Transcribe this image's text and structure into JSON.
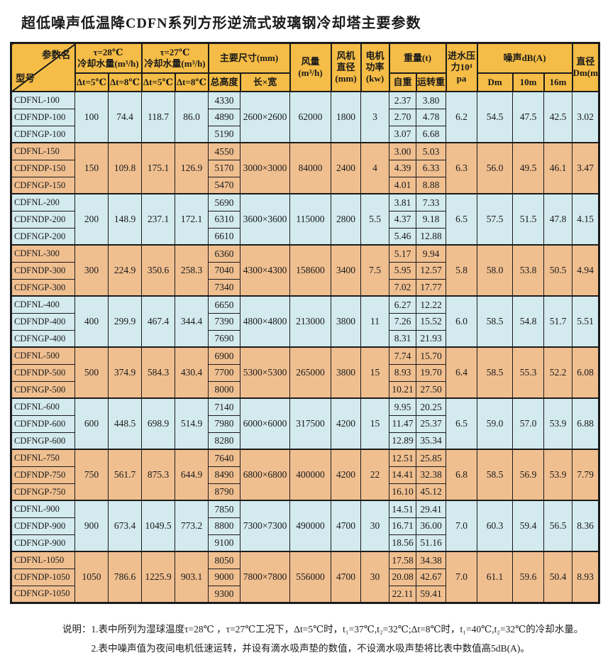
{
  "title": "超低噪声低温降CDFN系列方形逆流式玻璃钢冷却塔主要参数",
  "colors": {
    "header_bg": "#f5bd47",
    "row_blue": "#d3eaee",
    "row_tan": "#f0bf90",
    "border": "#1c1c1c",
    "text": "#1a1a1a"
  },
  "header": {
    "corner_top": "参数名",
    "corner_bottom": "型号",
    "flow28": "τ=28℃\n冷却水量(m³/h)",
    "flow27": "τ=27℃\n冷却水量(m³/h)",
    "size": "主要尺寸(mm)",
    "airflow": "风量\n(m³/h)",
    "fan": "风机\n直径\n(mm)",
    "motor": "电机\n功率\n(kw)",
    "weight": "重量(t)",
    "pressure": "进水压\n力10⁴\npa",
    "noise": "噪声dB(A)",
    "diameter": "直径\nDm(m)",
    "sub": [
      "Δt=5℃",
      "Δt=8℃",
      "Δt=5℃",
      "Δt=8℃",
      "总高度",
      "长×宽",
      "自重",
      "运转重",
      "Dm",
      "10m",
      "16m"
    ]
  },
  "groups": [
    {
      "tone": "blue",
      "models": [
        "CDFNL-100",
        "CDFNDP-100",
        "CDFNGP-100"
      ],
      "flow": [
        "100",
        "74.4",
        "118.7",
        "86.0"
      ],
      "heights": [
        "4330",
        "4890",
        "5190"
      ],
      "lw": "2600×2600",
      "air": "62000",
      "fan": "1800",
      "motor": "3",
      "self": [
        "2.37",
        "2.70",
        "3.07"
      ],
      "run": [
        "3.80",
        "4.78",
        "6.68"
      ],
      "pressure": "6.2",
      "noise": [
        "54.5",
        "47.5",
        "42.5"
      ],
      "dia": "3.02"
    },
    {
      "tone": "tan",
      "models": [
        "CDFNL-150",
        "CDFNDP-150",
        "CDFNGP-150"
      ],
      "flow": [
        "150",
        "109.8",
        "175.1",
        "126.9"
      ],
      "heights": [
        "4550",
        "5170",
        "5470"
      ],
      "lw": "3000×3000",
      "air": "84000",
      "fan": "2400",
      "motor": "4",
      "self": [
        "3.00",
        "4.39",
        "4.01"
      ],
      "run": [
        "5.03",
        "6.33",
        "8.88"
      ],
      "pressure": "6.3",
      "noise": [
        "56.0",
        "49.5",
        "46.1"
      ],
      "dia": "3.47"
    },
    {
      "tone": "blue",
      "models": [
        "CDFNL-200",
        "CDFNDP-200",
        "CDFNGP-200"
      ],
      "flow": [
        "200",
        "148.9",
        "237.1",
        "172.1"
      ],
      "heights": [
        "5690",
        "6310",
        "6610"
      ],
      "lw": "3600×3600",
      "air": "115000",
      "fan": "2800",
      "motor": "5.5",
      "self": [
        "3.81",
        "4.37",
        "5.46"
      ],
      "run": [
        "7.33",
        "9.18",
        "12.88"
      ],
      "pressure": "6.5",
      "noise": [
        "57.5",
        "51.5",
        "47.8"
      ],
      "dia": "4.15"
    },
    {
      "tone": "tan",
      "models": [
        "CDFNL-300",
        "CDFNDP-300",
        "CDFNGP-300"
      ],
      "flow": [
        "300",
        "224.9",
        "350.6",
        "258.3"
      ],
      "heights": [
        "6360",
        "7040",
        "7340"
      ],
      "lw": "4300×4300",
      "air": "158600",
      "fan": "3400",
      "motor": "7.5",
      "self": [
        "5.17",
        "5.95",
        "7.02"
      ],
      "run": [
        "9.94",
        "12.57",
        "17.77"
      ],
      "pressure": "5.8",
      "noise": [
        "58.0",
        "53.8",
        "50.5"
      ],
      "dia": "4.94"
    },
    {
      "tone": "blue",
      "models": [
        "CDFNL-400",
        "CDFNDP-400",
        "CDFNGP-400"
      ],
      "flow": [
        "400",
        "299.9",
        "467.4",
        "344.4"
      ],
      "heights": [
        "6650",
        "7390",
        "7690"
      ],
      "lw": "4800×4800",
      "air": "213000",
      "fan": "3800",
      "motor": "11",
      "self": [
        "6.27",
        "7.26",
        "8.31"
      ],
      "run": [
        "12.22",
        "15.52",
        "21.93"
      ],
      "pressure": "6.0",
      "noise": [
        "58.5",
        "54.8",
        "51.7"
      ],
      "dia": "5.51"
    },
    {
      "tone": "tan",
      "models": [
        "CDFNL-500",
        "CDFNDP-500",
        "CDFNGP-500"
      ],
      "flow": [
        "500",
        "374.9",
        "584.3",
        "430.4"
      ],
      "heights": [
        "6900",
        "7700",
        "8000"
      ],
      "lw": "5300×5300",
      "air": "265000",
      "fan": "3800",
      "motor": "15",
      "self": [
        "7.74",
        "8.93",
        "10.21"
      ],
      "run": [
        "15.70",
        "19.70",
        "27.50"
      ],
      "pressure": "6.4",
      "noise": [
        "58.5",
        "55.3",
        "52.2"
      ],
      "dia": "6.08"
    },
    {
      "tone": "blue",
      "models": [
        "CDFNL-600",
        "CDFNDP-600",
        "CDFNGP-600"
      ],
      "flow": [
        "600",
        "448.5",
        "698.9",
        "514.9"
      ],
      "heights": [
        "7140",
        "7980",
        "8280"
      ],
      "lw": "6000×6000",
      "air": "317500",
      "fan": "4200",
      "motor": "15",
      "self": [
        "9.95",
        "11.47",
        "12.89"
      ],
      "run": [
        "20.25",
        "25.37",
        "35.34"
      ],
      "pressure": "6.5",
      "noise": [
        "59.0",
        "57.0",
        "53.9"
      ],
      "dia": "6.88"
    },
    {
      "tone": "tan",
      "models": [
        "CDFNL-750",
        "CDFNDP-750",
        "CDFNGP-750"
      ],
      "flow": [
        "750",
        "561.7",
        "875.3",
        "644.9"
      ],
      "heights": [
        "7640",
        "8490",
        "8790"
      ],
      "lw": "6800×6800",
      "air": "400000",
      "fan": "4200",
      "motor": "22",
      "self": [
        "12.51",
        "14.41",
        "16.10"
      ],
      "run": [
        "25.85",
        "32.38",
        "45.12"
      ],
      "pressure": "6.8",
      "noise": [
        "58.5",
        "56.9",
        "53.9"
      ],
      "dia": "7.79"
    },
    {
      "tone": "blue",
      "models": [
        "CDFNL-900",
        "CDFNDP-900",
        "CDFNGP-900"
      ],
      "flow": [
        "900",
        "673.4",
        "1049.5",
        "773.2"
      ],
      "heights": [
        "7850",
        "8800",
        "9100"
      ],
      "lw": "7300×7300",
      "air": "490000",
      "fan": "4700",
      "motor": "30",
      "self": [
        "14.51",
        "16.71",
        "18.56"
      ],
      "run": [
        "29.41",
        "36.00",
        "51.16"
      ],
      "pressure": "7.0",
      "noise": [
        "60.3",
        "59.4",
        "56.5"
      ],
      "dia": "8.36"
    },
    {
      "tone": "tan",
      "models": [
        "CDFNL-1050",
        "CDFNDP-1050",
        "CDFNGP-1050"
      ],
      "flow": [
        "1050",
        "786.6",
        "1225.9",
        "903.1"
      ],
      "heights": [
        "8050",
        "9000",
        "9300"
      ],
      "lw": "7800×7800",
      "air": "556000",
      "fan": "4700",
      "motor": "30",
      "self": [
        "17.58",
        "20.08",
        "22.11"
      ],
      "run": [
        "34.38",
        "42.67",
        "59.41"
      ],
      "pressure": "7.0",
      "noise": [
        "61.1",
        "59.6",
        "50.4"
      ],
      "dia": "8.93"
    }
  ],
  "notes": {
    "label": "说明：",
    "lines": [
      "1.表中所列为湿球温度τ=28℃ ，τ=27℃工况下，Δt=5℃时，t₁=37℃,t₂=32℃;Δt=8℃时，t₁=40℃,t₂=32℃的冷却水量。",
      "2.表中噪声值为夜间电机低速运转，并设有滴水吸声垫的数值，不设滴水吸声垫将比表中数值高5dB(A)。"
    ]
  }
}
